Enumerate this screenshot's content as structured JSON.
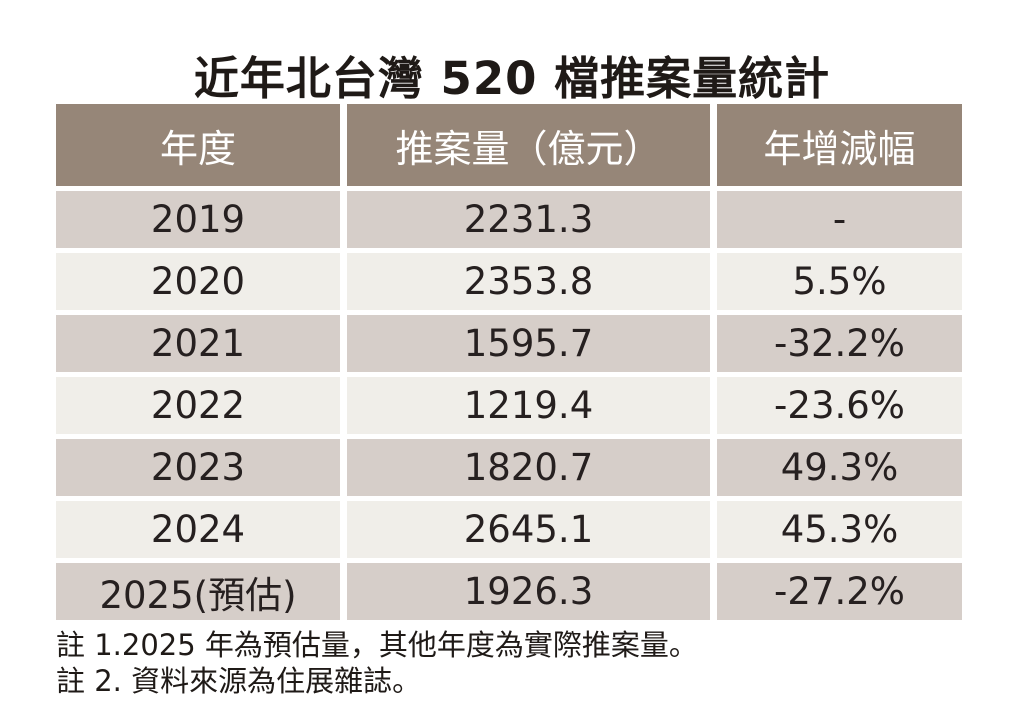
{
  "title": "近年北台灣 520 檔推案量統計",
  "chart_data": {
    "type": "table",
    "title": "近年北台灣 520 檔推案量統計",
    "columns": [
      "年度",
      "推案量（億元）",
      "年增減幅"
    ],
    "rows": [
      {
        "year": "2019",
        "volume": "2231.3",
        "change": "-"
      },
      {
        "year": "2020",
        "volume": "2353.8",
        "change": "5.5%"
      },
      {
        "year": "2021",
        "volume": "1595.7",
        "change": "-32.2%"
      },
      {
        "year": "2022",
        "volume": "1219.4",
        "change": "-23.6%"
      },
      {
        "year": "2023",
        "volume": "1820.7",
        "change": "49.3%"
      },
      {
        "year": "2024",
        "volume": "2645.1",
        "change": "45.3%"
      },
      {
        "year": "2025(預估)",
        "volume": "1926.3",
        "change": "-27.2%"
      }
    ],
    "volume_values": [
      2231.3,
      2353.8,
      1595.7,
      1219.4,
      1820.7,
      2645.1,
      1926.3
    ],
    "change_values_pct": [
      null,
      5.5,
      -32.2,
      -23.6,
      49.3,
      45.3,
      -27.2
    ]
  },
  "notes": {
    "line1": "註 1.2025 年為預估量，其他年度為實際推案量。",
    "line2": "註 2. 資料來源為住展雜誌。"
  },
  "colors": {
    "header_bg": "#968678",
    "header_text": "#ffffff",
    "row_odd_bg": "#d6cec9",
    "row_even_bg": "#f0eee9",
    "body_text": "#262020"
  }
}
